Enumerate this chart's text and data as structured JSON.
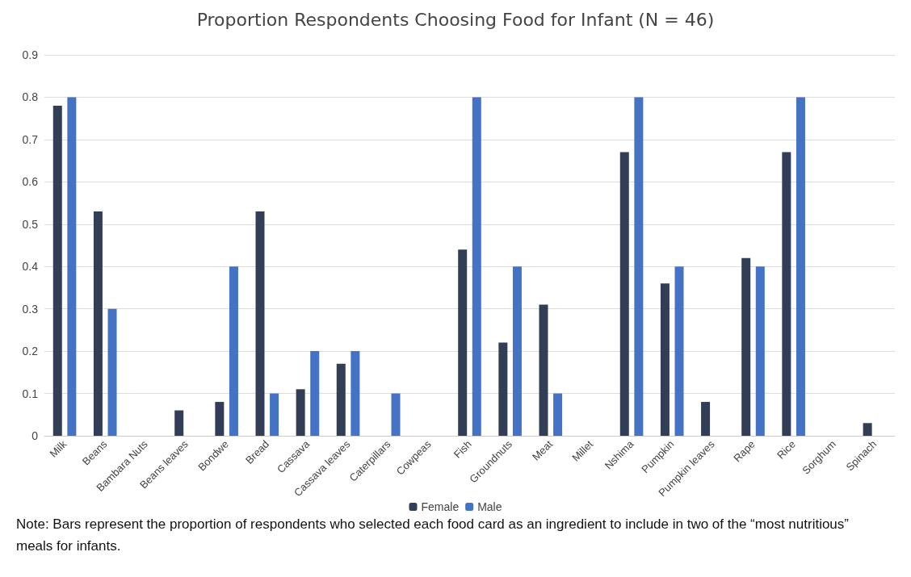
{
  "chart_data": {
    "type": "bar",
    "title": "Proportion Respondents Choosing Food for Infant (N = 46)",
    "categories": [
      "Milk",
      "Beans",
      "Bambara Nuts",
      "Beans leaves",
      "Bondwe",
      "Bread",
      "Cassava",
      "Cassava leaves",
      "Caterpillars",
      "Cowpeas",
      "Fish",
      "Groundnuts",
      "Meat",
      "Millet",
      "Nshima",
      "Pumpkin",
      "Pumpkin leaves",
      "Rape",
      "Rice",
      "Sorghum",
      "Spinach"
    ],
    "series": [
      {
        "name": "Female",
        "color": "#323e55",
        "values": [
          0.78,
          0.53,
          0,
          0.06,
          0.08,
          0.53,
          0.11,
          0.17,
          0,
          0,
          0.44,
          0.22,
          0.31,
          0,
          0.67,
          0.36,
          0.08,
          0.42,
          0.67,
          0,
          0.03
        ]
      },
      {
        "name": "Male",
        "color": "#4472c4",
        "values": [
          0.8,
          0.3,
          0,
          0,
          0.4,
          0.1,
          0.2,
          0.2,
          0.1,
          0,
          0.8,
          0.4,
          0.1,
          0,
          0.8,
          0.4,
          0,
          0.4,
          0.8,
          0,
          0
        ]
      }
    ],
    "ylim": [
      0,
      0.9
    ],
    "yticks": [
      0,
      0.1,
      0.2,
      0.3,
      0.4,
      0.5,
      0.6,
      0.7,
      0.8,
      0.9
    ],
    "grid": "y",
    "legend": "bottom",
    "annotations": [
      "Note: Bars represent the proportion of respondents who selected each food card as an ingredient to include in two of the “most nutritious” meals for infants."
    ]
  }
}
